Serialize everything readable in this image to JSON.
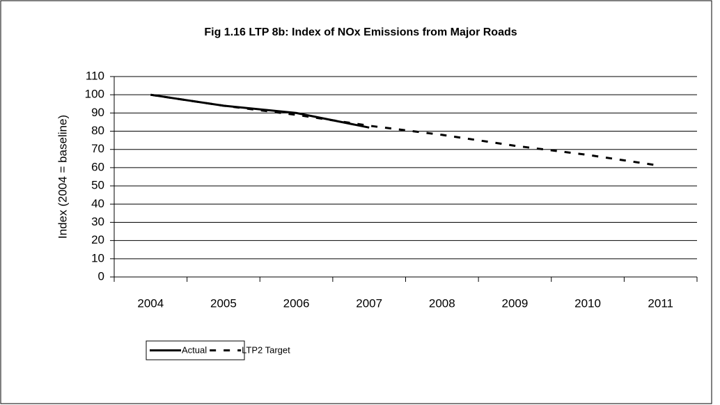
{
  "chart_data": {
    "type": "line",
    "title": "Fig 1.16 LTP 8b: Index of NOx Emissions from Major Roads",
    "ylabel": "Index (2004 = baseline)",
    "categories": [
      "2004",
      "2005",
      "2006",
      "2007",
      "2008",
      "2009",
      "2010",
      "2011"
    ],
    "series": [
      {
        "name": "Actual",
        "color": "#000000",
        "dashed": false,
        "values": [
          100,
          94,
          90,
          82,
          null,
          null,
          null,
          null
        ]
      },
      {
        "name": "LTP2 Target",
        "color": "#000000",
        "dashed": true,
        "values": [
          100,
          94,
          89,
          83,
          78,
          72,
          67,
          61
        ]
      }
    ],
    "ylim": [
      0,
      110
    ],
    "yticks": [
      0,
      10,
      20,
      30,
      40,
      50,
      60,
      70,
      80,
      90,
      100,
      110
    ],
    "grid": true,
    "legend": "bottom-left"
  }
}
